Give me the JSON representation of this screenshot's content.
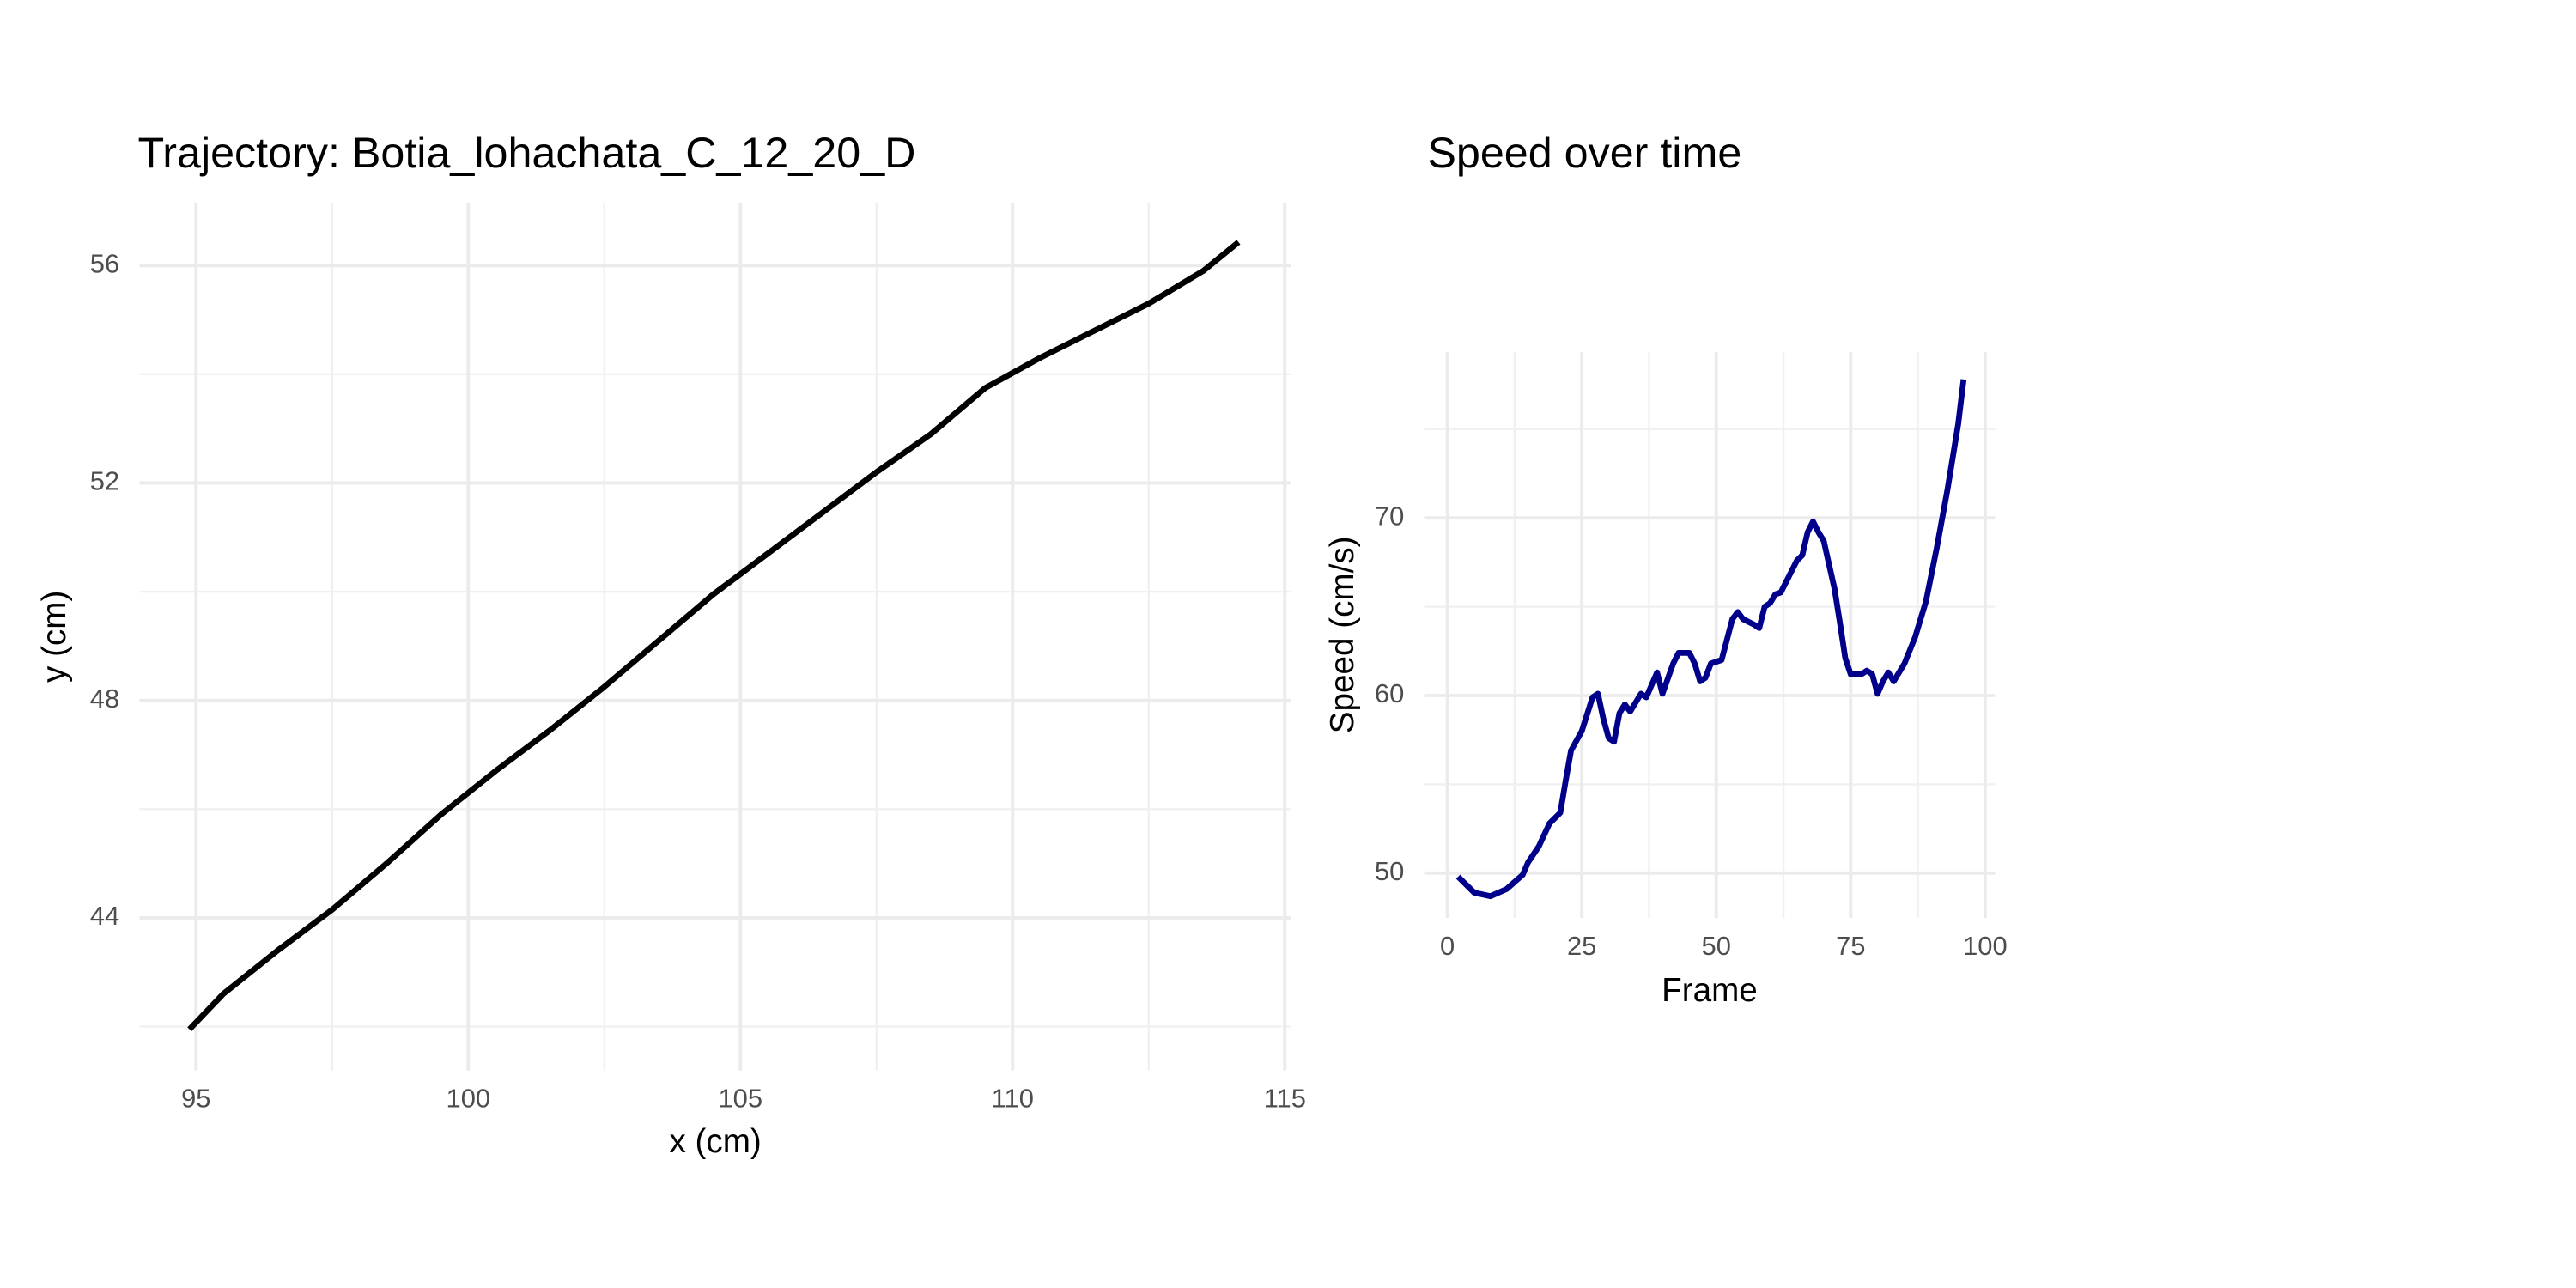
{
  "chart_data": [
    {
      "type": "line",
      "title": "Trajectory: Botia_lohachata_C_12_20_D",
      "x_label": "x (cm)",
      "y_label": "y (cm)",
      "color": "#000000",
      "x": [
        94.88,
        95.5,
        96.5,
        97.5,
        98.5,
        99.5,
        100.5,
        101.5,
        102.5,
        103.5,
        104.5,
        105.5,
        106.5,
        107.5,
        108.5,
        109.5,
        110.5,
        111.5,
        112.5,
        113.5,
        114.15
      ],
      "values": [
        41.95,
        42.6,
        43.4,
        44.15,
        45.0,
        45.9,
        46.7,
        47.45,
        48.25,
        49.1,
        49.95,
        50.7,
        51.45,
        52.2,
        52.9,
        53.75,
        54.3,
        54.8,
        55.3,
        55.9,
        56.43
      ],
      "xlim": [
        93.96,
        115.12
      ],
      "ylim": [
        41.19,
        57.16
      ],
      "xticks": [
        95,
        100,
        105,
        110,
        115
      ],
      "yticks": [
        44,
        48,
        52,
        56
      ],
      "grid": true,
      "minor_grid": true
    },
    {
      "type": "line",
      "title": "Speed over time",
      "x_label": "Frame",
      "y_label": "Speed (cm/s)",
      "color": "#00008b",
      "x": [
        2,
        5,
        8,
        11,
        14,
        15,
        17,
        19,
        21,
        22,
        23,
        25,
        27,
        28,
        29,
        30,
        31,
        32,
        33,
        34,
        36,
        37,
        39,
        40,
        42,
        43,
        45,
        46,
        47,
        48,
        49,
        51,
        53,
        54,
        55,
        57,
        58,
        59,
        60,
        61,
        62,
        64,
        65,
        66,
        67,
        68,
        69,
        70,
        72,
        73,
        74,
        75,
        77,
        78,
        79,
        80,
        81,
        82,
        83,
        85,
        87,
        89,
        91,
        93,
        95,
        96
      ],
      "values": [
        49.8,
        48.9,
        48.7,
        49.1,
        49.9,
        50.6,
        51.5,
        52.8,
        53.4,
        55.2,
        56.9,
        58,
        59.9,
        60.1,
        58.7,
        57.6,
        57.4,
        59,
        59.5,
        59.1,
        60.1,
        59.9,
        61.3,
        60.1,
        61.8,
        62.4,
        62.4,
        61.8,
        60.8,
        61,
        61.8,
        62,
        64.3,
        64.7,
        64.3,
        64,
        63.8,
        65,
        65.2,
        65.7,
        65.8,
        67,
        67.6,
        67.9,
        69.2,
        69.8,
        69.2,
        68.7,
        66,
        64.1,
        62.1,
        61.2,
        61.2,
        61.4,
        61.2,
        60.1,
        60.8,
        61.3,
        60.8,
        61.8,
        63.3,
        65.3,
        68.3,
        71.6,
        75.3,
        77.8
      ],
      "xlim": [
        -4.32,
        101.85
      ],
      "ylim": [
        47.48,
        79.35
      ],
      "xticks": [
        0,
        25,
        50,
        75,
        100
      ],
      "yticks": [
        50,
        60,
        70
      ],
      "grid": true,
      "minor_grid": true
    }
  ]
}
